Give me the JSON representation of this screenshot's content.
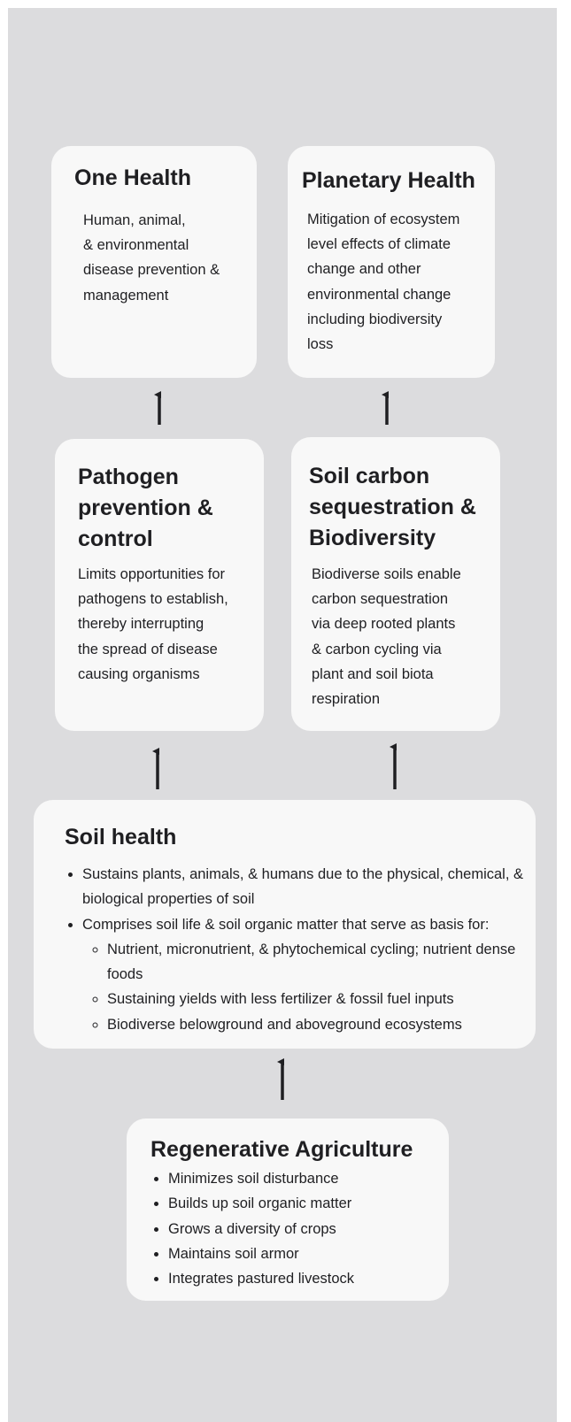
{
  "nodes": [
    {
      "title": [
        "One Health"
      ],
      "lines": [
        "Human, animal,",
        "& environmental",
        "disease prevention &",
        "management"
      ]
    },
    {
      "title": [
        "Planetary Health"
      ],
      "lines": [
        "Mitigation of ecosystem",
        "level effects of climate",
        "change and other",
        "environmental change",
        "including biodiversity",
        "loss"
      ]
    },
    {
      "title": [
        "Pathogen",
        "prevention &",
        "control"
      ],
      "lines": [
        "Limits opportunities for",
        "pathogens to establish,",
        "thereby interrupting",
        "the spread of disease",
        "causing organisms"
      ]
    },
    {
      "title": [
        "Soil carbon",
        "sequestration &",
        "Biodiversity"
      ],
      "lines": [
        "Biodiverse soils enable",
        "carbon sequestration",
        "via deep rooted plants",
        "& carbon cycling via",
        "plant and soil biota",
        "respiration"
      ]
    },
    {
      "title": [
        "Soil health"
      ],
      "bullets": [
        {
          "text": "Sustains plants, animals, & humans due to the physical, chemical, & biological properties of soil"
        },
        {
          "text": "Comprises soil life & soil organic matter that serve as basis for:",
          "sub": [
            "Nutrient, micronutrient, & phytochemical cycling; nutrient dense foods",
            "Sustaining yields with less fertilizer & fossil fuel inputs",
            "Biodiverse belowground and aboveground ecosystems"
          ]
        }
      ]
    },
    {
      "title": [
        "Regenerative Agriculture"
      ],
      "bullets": [
        {
          "text": "Minimizes soil disturbance"
        },
        {
          "text": "Builds up soil organic matter"
        },
        {
          "text": "Grows a diversity of crops"
        },
        {
          "text": "Maintains soil armor"
        },
        {
          "text": "Integrates pastured livestock"
        }
      ]
    }
  ]
}
